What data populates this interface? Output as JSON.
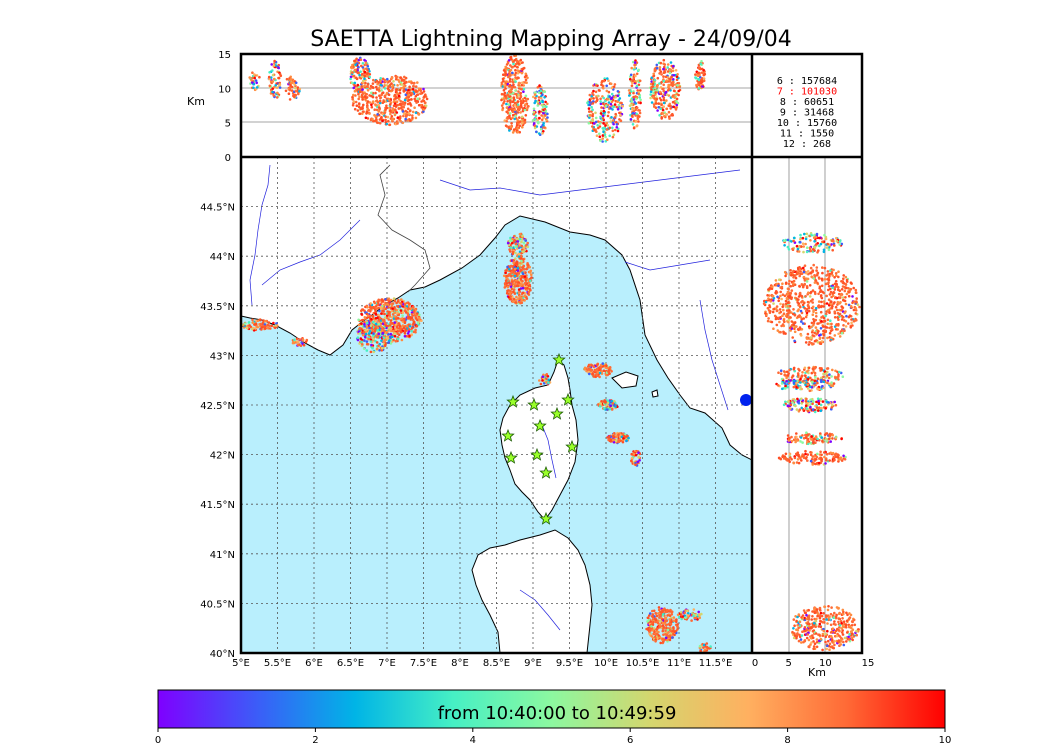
{
  "title": "SAETTA Lightning Mapping Array - 24/09/04",
  "map": {
    "lon_ticks": [
      "5°E",
      "5.5°E",
      "6°E",
      "6.5°E",
      "7°E",
      "7.5°E",
      "8°E",
      "8.5°E",
      "9°E",
      "9.5°E",
      "10°E",
      "10.5°E",
      "11°E",
      "11.5°E"
    ],
    "lat_ticks": [
      "44.5°N",
      "44°N",
      "43.5°N",
      "43°N",
      "42.5°N",
      "42°N",
      "41.5°N",
      "41°N",
      "40.5°N",
      "40°N"
    ],
    "lon_range": [
      5,
      12
    ],
    "lat_range": [
      40,
      45
    ],
    "sea_color": "#b9effd",
    "land_color": "#ffffff",
    "coast_color": "#000000",
    "river_color": "#2222dd",
    "stations_color": "#9aff2a"
  },
  "altitude_panel": {
    "ylabel": "Km",
    "y_ticks": [
      "15",
      "10",
      "5",
      "0"
    ],
    "y_range": [
      0,
      15
    ]
  },
  "side_panel": {
    "xlabel": "Km",
    "x_ticks": [
      "0",
      "5",
      "10",
      "15"
    ],
    "x_range": [
      0,
      15
    ]
  },
  "stats": [
    {
      "label": "6 :  157684",
      "highlight": false
    },
    {
      "label": "7 :  101030",
      "highlight": true
    },
    {
      "label": "8 :   60651",
      "highlight": false
    },
    {
      "label": "9 :   31468",
      "highlight": false
    },
    {
      "label": "10 :   15760",
      "highlight": false
    },
    {
      "label": "11 :    1550",
      "highlight": false
    },
    {
      "label": "12 :     268",
      "highlight": false
    }
  ],
  "colorbar": {
    "label": "from 10:40:00 to 10:49:59",
    "ticks": [
      "0",
      "2",
      "4",
      "6",
      "8",
      "10"
    ],
    "range": [
      0,
      10
    ],
    "colors": [
      "#7f00ff",
      "#3c5cf8",
      "#00b4e6",
      "#46f0c4",
      "#8cf8a0",
      "#d4d66e",
      "#ffb060",
      "#ff6a36",
      "#ff0000"
    ]
  }
}
